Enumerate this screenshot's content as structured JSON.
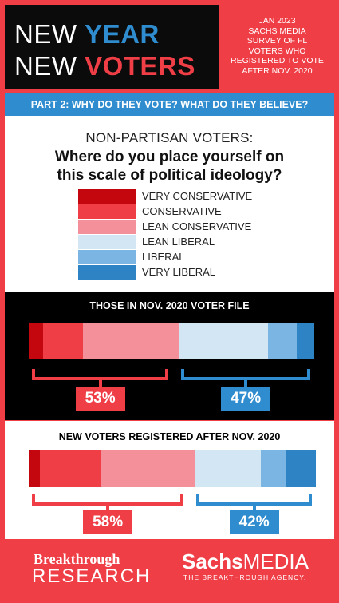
{
  "header": {
    "title_line1": [
      "NEW",
      "YEAR"
    ],
    "title_line2": [
      "NEW",
      "VOTERS"
    ],
    "survey_lines": [
      "JAN 2023",
      "SACHS MEDIA",
      "SURVEY OF FL",
      "VOTERS WHO",
      "REGISTERED TO VOTE",
      "AFTER NOV. 2020"
    ]
  },
  "part_banner": "PART 2: WHY DO THEY VOTE? WHAT DO THEY BELIEVE?",
  "question": {
    "subtitle": "NON-PARTISAN VOTERS:",
    "title_line1": "Where do you place yourself on",
    "title_line2": "this scale of political ideology?"
  },
  "legend": [
    {
      "label": "VERY CONSERVATIVE",
      "color": "#c4070f"
    },
    {
      "label": "CONSERVATIVE",
      "color": "#ef3e46"
    },
    {
      "label": "LEAN CONSERVATIVE",
      "color": "#f4909a"
    },
    {
      "label": "LEAN LIBERAL",
      "color": "#d3e6f4"
    },
    {
      "label": "LIBERAL",
      "color": "#7bb5e3"
    },
    {
      "label": "VERY LIBERAL",
      "color": "#2e83c5"
    }
  ],
  "chart_data": [
    {
      "type": "bar",
      "stacked": true,
      "orientation": "horizontal",
      "title": "THOSE IN NOV. 2020 VOTER FILE",
      "categories": [
        "VERY CONSERVATIVE",
        "CONSERVATIVE",
        "LEAN CONSERVATIVE",
        "LEAN LIBERAL",
        "LIBERAL",
        "VERY LIBERAL"
      ],
      "values": [
        5,
        14,
        34,
        31,
        10,
        6
      ],
      "groups": [
        {
          "label": "53%",
          "value": 53,
          "side": "conservative"
        },
        {
          "label": "47%",
          "value": 47,
          "side": "liberal"
        }
      ]
    },
    {
      "type": "bar",
      "stacked": true,
      "orientation": "horizontal",
      "title": "NEW VOTERS REGISTERED AFTER NOV. 2020",
      "categories": [
        "VERY CONSERVATIVE",
        "CONSERVATIVE",
        "LEAN CONSERVATIVE",
        "LEAN LIBERAL",
        "LIBERAL",
        "VERY LIBERAL"
      ],
      "values": [
        4,
        21,
        33,
        23,
        9,
        10
      ],
      "groups": [
        {
          "label": "58%",
          "value": 58,
          "side": "conservative"
        },
        {
          "label": "42%",
          "value": 42,
          "side": "liberal"
        }
      ]
    }
  ],
  "footer": {
    "left_line1": "Breakthrough",
    "left_line2": "RESEARCH",
    "right_line1_bold": "Sachs",
    "right_line1_rest": "MEDIA",
    "right_line2": "THE BREAKTHROUGH AGENCY."
  },
  "colors": {
    "red": "#ef3e46",
    "blue": "#2e8ccf",
    "black": "#000000"
  }
}
